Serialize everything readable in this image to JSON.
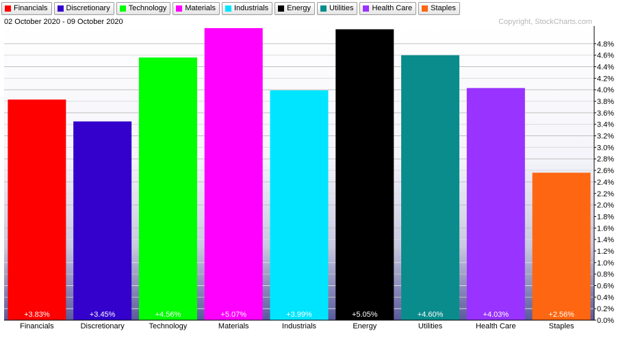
{
  "legend": [
    {
      "label": "Financials",
      "color": "#ff0000"
    },
    {
      "label": "Discretionary",
      "color": "#3300cc"
    },
    {
      "label": "Technology",
      "color": "#00ff00"
    },
    {
      "label": "Materials",
      "color": "#ff00ff"
    },
    {
      "label": "Industrials",
      "color": "#00e5ff"
    },
    {
      "label": "Energy",
      "color": "#000000"
    },
    {
      "label": "Utilities",
      "color": "#0b8c8c"
    },
    {
      "label": "Health Care",
      "color": "#9933ff"
    },
    {
      "label": "Staples",
      "color": "#ff6611"
    }
  ],
  "date_range": "02 October 2020 - 09 October 2020",
  "copyright": "Copyright, StockCharts.com",
  "chart_data": {
    "type": "bar",
    "title": "",
    "xlabel": "",
    "ylabel": "",
    "ylim": [
      0,
      5.1
    ],
    "y_ticks": [
      "0.0%",
      "0.2%",
      "0.4%",
      "0.6%",
      "0.8%",
      "1.0%",
      "1.2%",
      "1.4%",
      "1.6%",
      "1.8%",
      "2.0%",
      "2.2%",
      "2.4%",
      "2.6%",
      "2.8%",
      "3.0%",
      "3.2%",
      "3.4%",
      "3.6%",
      "3.8%",
      "4.0%",
      "4.2%",
      "4.4%",
      "4.6%",
      "4.8%"
    ],
    "grid": true,
    "categories": [
      "Financials",
      "Discretionary",
      "Technology",
      "Materials",
      "Industrials",
      "Energy",
      "Utilities",
      "Health Care",
      "Staples"
    ],
    "values": [
      3.83,
      3.45,
      4.56,
      5.07,
      3.99,
      5.05,
      4.6,
      4.03,
      2.56
    ],
    "value_labels": [
      "+3.83%",
      "+3.45%",
      "+4.56%",
      "+5.07%",
      "+3.99%",
      "+5.05%",
      "+4.60%",
      "+4.03%",
      "+2.56%"
    ],
    "colors": [
      "#ff0000",
      "#3300cc",
      "#00ff00",
      "#ff00ff",
      "#00e5ff",
      "#000000",
      "#0b8c8c",
      "#9933ff",
      "#ff6611"
    ]
  }
}
